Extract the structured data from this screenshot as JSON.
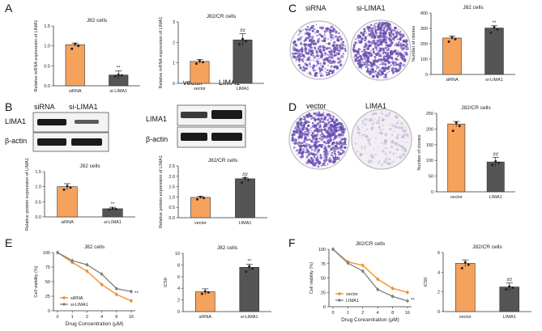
{
  "panel_labels": [
    "A",
    "B",
    "C",
    "D",
    "E",
    "F"
  ],
  "colors": {
    "orange": "#f5a25d",
    "orange_line": "#f08c1e",
    "dark": "#555555",
    "grey_line": "#7f7f7f",
    "dish": "#6a4fb0",
    "dish_light": "#c9bcd9"
  },
  "blots": {
    "b1": {
      "headers": [
        "siRNA",
        "si-LIMA1"
      ],
      "rows": [
        "LIMA1",
        "β-actin"
      ]
    },
    "b2": {
      "headers": [
        "vector",
        "LIMA1"
      ],
      "rows": [
        "LIMA1",
        "β-actin"
      ]
    }
  },
  "dishes": {
    "c": {
      "labels": [
        "siRNA",
        "si-LIMA1"
      ]
    },
    "d": {
      "labels": [
        "vector",
        "LIMA1"
      ]
    }
  },
  "chart_data": [
    {
      "id": "A1",
      "type": "bar",
      "title": "J82 cells",
      "ylabel": "Relative mRNA expression of LIMA1",
      "categories": [
        "siRNA",
        "si-LIMA1"
      ],
      "values": [
        1.03,
        0.27
      ],
      "errors": [
        0.04,
        0.1
      ],
      "colors": [
        "#f5a25d",
        "#555555"
      ],
      "ylim": [
        0,
        1.5
      ],
      "yticks": [
        "0.0",
        "0.5",
        "1.0",
        "1.5"
      ],
      "sig": [
        "",
        "**"
      ]
    },
    {
      "id": "A2",
      "type": "bar",
      "title": "J82/CR cells",
      "ylabel": "Relative mRNA expression of LIMA1",
      "categories": [
        "vector",
        "LIMA1"
      ],
      "values": [
        1.07,
        2.12
      ],
      "errors": [
        0.1,
        0.3
      ],
      "colors": [
        "#f5a25d",
        "#555555"
      ],
      "ylim": [
        0,
        3
      ],
      "yticks": [
        "0",
        "1",
        "2",
        "3"
      ],
      "sig": [
        "",
        "##"
      ]
    },
    {
      "id": "B1",
      "type": "bar",
      "title": "J82 cells",
      "ylabel": "Relative protein expression of LIMA1",
      "categories": [
        "siRNA",
        "si-LIMA1"
      ],
      "values": [
        1.0,
        0.27
      ],
      "errors": [
        0.1,
        0.05
      ],
      "colors": [
        "#f5a25d",
        "#555555"
      ],
      "ylim": [
        0,
        1.5
      ],
      "yticks": [
        "0.0",
        "0.5",
        "1.0",
        "1.5"
      ],
      "sig": [
        "",
        "**"
      ]
    },
    {
      "id": "B2",
      "type": "bar",
      "title": "J82/CR cells",
      "ylabel": "Relative protein expression of LIMA1",
      "categories": [
        "vector",
        "LIMA1"
      ],
      "values": [
        0.98,
        1.88
      ],
      "errors": [
        0.05,
        0.05
      ],
      "colors": [
        "#f5a25d",
        "#555555"
      ],
      "ylim": [
        0,
        2.5
      ],
      "yticks": [
        "0.0",
        "0.5",
        "1.0",
        "1.5",
        "2.0",
        "2.5"
      ],
      "sig": [
        "",
        "##"
      ]
    },
    {
      "id": "C",
      "type": "bar",
      "title": "J82 cells",
      "ylabel": "Number of clonies",
      "categories": [
        "siRNA",
        "si-LIMA1"
      ],
      "values": [
        237,
        302
      ],
      "errors": [
        12,
        15
      ],
      "colors": [
        "#f5a25d",
        "#555555"
      ],
      "ylim": [
        0,
        400
      ],
      "yticks": [
        "0",
        "100",
        "200",
        "300",
        "400"
      ],
      "sig": [
        "",
        "**"
      ]
    },
    {
      "id": "D",
      "type": "bar",
      "title": "J82/CR cells",
      "ylabel": "Number of clonies",
      "categories": [
        "vector",
        "LIMA1"
      ],
      "values": [
        216,
        95
      ],
      "errors": [
        8,
        15
      ],
      "colors": [
        "#f5a25d",
        "#555555"
      ],
      "ylim": [
        0,
        250
      ],
      "yticks": [
        "0",
        "50",
        "100",
        "150",
        "200",
        "250"
      ],
      "sig": [
        "",
        "##"
      ]
    },
    {
      "id": "E1",
      "type": "line",
      "title": "J82 cells",
      "ylabel": "Cell viability (%)",
      "xlabel": "Drug Concentration (μM)",
      "x": [
        "0",
        "1",
        "2",
        "4",
        "8",
        "16"
      ],
      "ylim": [
        0,
        100
      ],
      "yticks": [
        "0",
        "25",
        "50",
        "75",
        "100"
      ],
      "series": [
        {
          "name": "siRNA",
          "values": [
            100,
            83,
            68,
            45,
            28,
            17
          ],
          "color": "#f08c1e"
        },
        {
          "name": "si-LIMA1",
          "values": [
            100,
            86,
            79,
            63,
            38,
            33
          ],
          "color": "#7f7f7f"
        }
      ],
      "sig": "**"
    },
    {
      "id": "E2",
      "type": "bar",
      "title": "J82 cells",
      "ylabel": "IC50",
      "categories": [
        "siRNA",
        "si-LIMA1"
      ],
      "values": [
        3.4,
        7.6
      ],
      "errors": [
        0.5,
        0.5
      ],
      "colors": [
        "#f5a25d",
        "#555555"
      ],
      "ylim": [
        0,
        10
      ],
      "yticks": [
        "0",
        "2",
        "4",
        "6",
        "8",
        "10"
      ],
      "sig": [
        "",
        "**"
      ]
    },
    {
      "id": "F1",
      "type": "line",
      "title": "J82/CR cells",
      "ylabel": "Cell viability (%)",
      "xlabel": "Drug Concentration (μM)",
      "x": [
        "0",
        "1",
        "2",
        "4",
        "8",
        "16"
      ],
      "ylim": [
        0,
        100
      ],
      "yticks": [
        "0",
        "25",
        "50",
        "75",
        "100"
      ],
      "series": [
        {
          "name": "vector",
          "values": [
            100,
            78,
            72,
            48,
            32,
            25
          ],
          "color": "#f08c1e"
        },
        {
          "name": "LIMA1",
          "values": [
            100,
            76,
            62,
            30,
            18,
            10
          ],
          "color": "#7f7f7f"
        }
      ],
      "sig": "**"
    },
    {
      "id": "F2",
      "type": "bar",
      "title": "J82/CR cells",
      "ylabel": "IC50",
      "categories": [
        "vector",
        "LIMA1"
      ],
      "values": [
        4.9,
        2.5
      ],
      "errors": [
        0.35,
        0.4
      ],
      "colors": [
        "#f5a25d",
        "#555555"
      ],
      "ylim": [
        0,
        6
      ],
      "yticks": [
        "0",
        "2",
        "4",
        "6"
      ],
      "sig": [
        "",
        "##"
      ]
    }
  ]
}
